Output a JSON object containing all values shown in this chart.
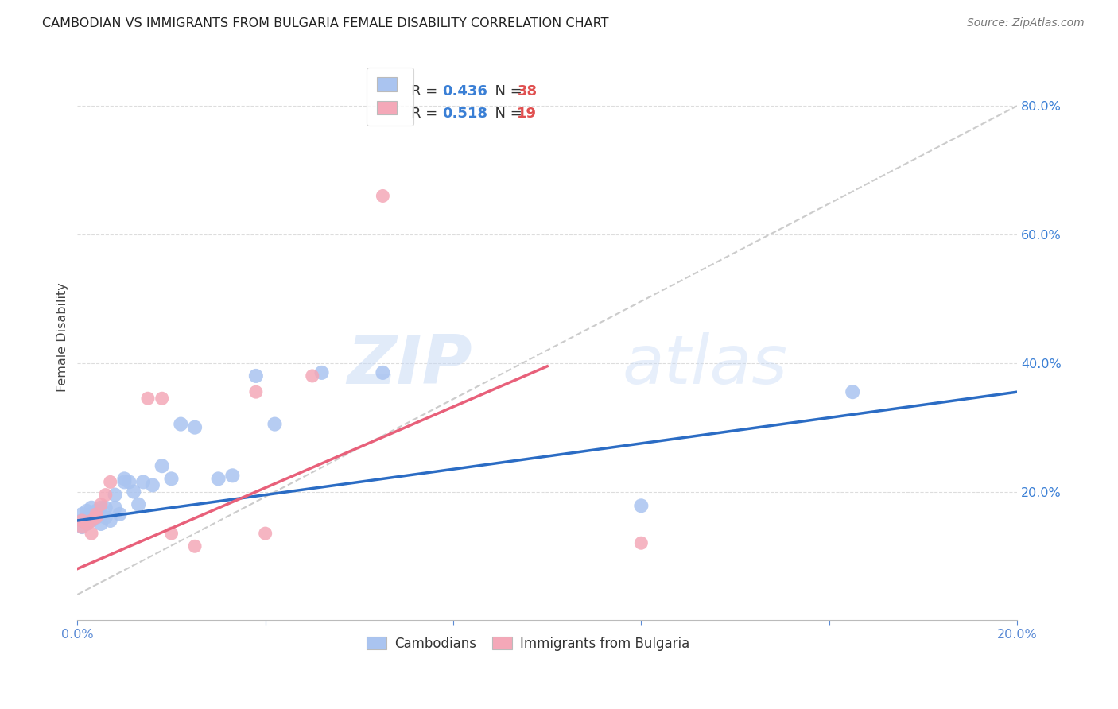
{
  "title": "CAMBODIAN VS IMMIGRANTS FROM BULGARIA FEMALE DISABILITY CORRELATION CHART",
  "source": "Source: ZipAtlas.com",
  "ylabel": "Female Disability",
  "xlim": [
    0.0,
    0.2
  ],
  "ylim": [
    0.0,
    0.88
  ],
  "ytick_values": [
    0.2,
    0.4,
    0.6,
    0.8
  ],
  "xtick_values": [
    0.0,
    0.04,
    0.08,
    0.12,
    0.16,
    0.2
  ],
  "xtick_show": [
    0.0,
    0.2
  ],
  "grid_color": "#dddddd",
  "background_color": "#ffffff",
  "cambodian_color": "#aac4f0",
  "bulgaria_color": "#f4a8b8",
  "cambodian_line_color": "#2b6cc4",
  "bulgaria_line_color": "#e8607a",
  "dashed_line_color": "#cccccc",
  "r_cambodian": "0.436",
  "n_cambodian": "38",
  "r_bulgaria": "0.518",
  "n_bulgaria": "19",
  "legend_label_cambodian": "Cambodians",
  "legend_label_bulgaria": "Immigrants from Bulgaria",
  "watermark_zip": "ZIP",
  "watermark_atlas": "atlas",
  "cambodian_x": [
    0.001,
    0.001,
    0.001,
    0.002,
    0.002,
    0.002,
    0.003,
    0.003,
    0.003,
    0.004,
    0.004,
    0.005,
    0.005,
    0.006,
    0.006,
    0.007,
    0.008,
    0.008,
    0.009,
    0.01,
    0.01,
    0.011,
    0.012,
    0.013,
    0.014,
    0.016,
    0.018,
    0.02,
    0.022,
    0.025,
    0.03,
    0.033,
    0.038,
    0.042,
    0.052,
    0.065,
    0.12,
    0.165
  ],
  "cambodian_y": [
    0.145,
    0.155,
    0.165,
    0.15,
    0.16,
    0.17,
    0.155,
    0.165,
    0.175,
    0.16,
    0.17,
    0.15,
    0.175,
    0.16,
    0.175,
    0.155,
    0.175,
    0.195,
    0.165,
    0.22,
    0.215,
    0.215,
    0.2,
    0.18,
    0.215,
    0.21,
    0.24,
    0.22,
    0.305,
    0.3,
    0.22,
    0.225,
    0.38,
    0.305,
    0.385,
    0.385,
    0.178,
    0.355
  ],
  "bulgaria_x": [
    0.001,
    0.001,
    0.002,
    0.003,
    0.003,
    0.004,
    0.004,
    0.005,
    0.006,
    0.007,
    0.015,
    0.018,
    0.02,
    0.025,
    0.038,
    0.04,
    0.05,
    0.065,
    0.12
  ],
  "bulgaria_y": [
    0.145,
    0.155,
    0.15,
    0.135,
    0.155,
    0.16,
    0.165,
    0.18,
    0.195,
    0.215,
    0.345,
    0.345,
    0.135,
    0.115,
    0.355,
    0.135,
    0.38,
    0.66,
    0.12
  ],
  "camb_line_x": [
    0.0,
    0.2
  ],
  "camb_line_y": [
    0.155,
    0.355
  ],
  "bulg_line_x": [
    0.0,
    0.1
  ],
  "bulg_line_y": [
    0.08,
    0.395
  ],
  "dash_line_x": [
    0.0,
    0.2
  ],
  "dash_line_y": [
    0.04,
    0.8
  ]
}
